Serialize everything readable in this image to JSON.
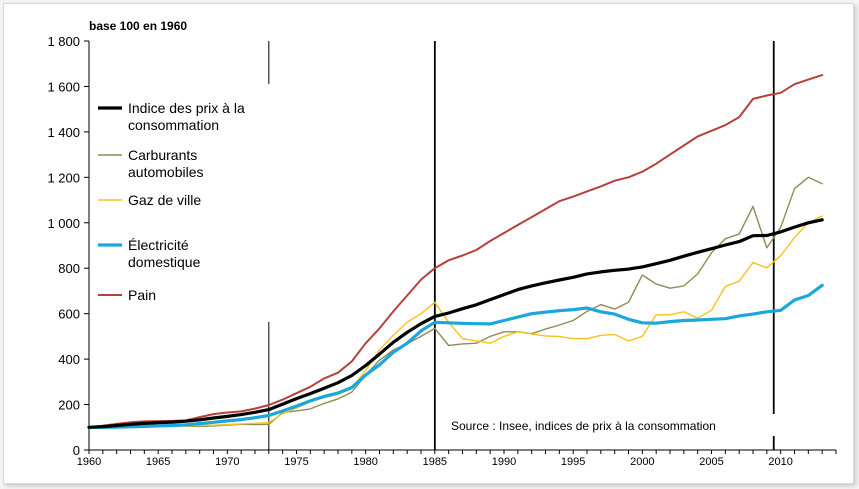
{
  "chart_data": {
    "type": "line",
    "subtitle": "base 100 en 1960",
    "source": "Source : Insee, indices de prix à la consommation",
    "xlim": [
      1960,
      2014
    ],
    "ylim": [
      0,
      1800
    ],
    "x_ticks": [
      1960,
      1965,
      1970,
      1975,
      1980,
      1985,
      1990,
      1995,
      2000,
      2005,
      2010
    ],
    "y_ticks": [
      {
        "value": 0,
        "label": "0"
      },
      {
        "value": 200,
        "label": "200"
      },
      {
        "value": 400,
        "label": "400"
      },
      {
        "value": 600,
        "label": "600"
      },
      {
        "value": 800,
        "label": "800"
      },
      {
        "value": 1000,
        "label": "1 000"
      },
      {
        "value": 1200,
        "label": "1 200"
      },
      {
        "value": 1400,
        "label": "1 400"
      },
      {
        "value": 1600,
        "label": "1 600"
      },
      {
        "value": 1800,
        "label": "1 800"
      }
    ],
    "vertical_markers": [
      1973,
      1985,
      2009.5
    ],
    "legend_position": "top-left",
    "x": [
      1960,
      1961,
      1962,
      1963,
      1964,
      1965,
      1966,
      1967,
      1968,
      1969,
      1970,
      1971,
      1972,
      1973,
      1974,
      1975,
      1976,
      1977,
      1978,
      1979,
      1980,
      1981,
      1982,
      1983,
      1984,
      1985,
      1986,
      1987,
      1988,
      1989,
      1990,
      1991,
      1992,
      1993,
      1994,
      1995,
      1996,
      1997,
      1998,
      1999,
      2000,
      2001,
      2002,
      2003,
      2004,
      2005,
      2006,
      2007,
      2008,
      2009,
      2010,
      2011,
      2012,
      2013
    ],
    "series": [
      {
        "name": "Indice des prix à la consommation",
        "color": "#000000",
        "width": 3.2,
        "values": [
          100,
          103,
          108,
          113,
          117,
          120,
          123,
          127,
          133,
          141,
          148,
          156,
          166,
          178,
          202,
          226,
          248,
          272,
          296,
          328,
          372,
          422,
          474,
          518,
          556,
          588,
          603,
          622,
          639,
          662,
          684,
          706,
          722,
          736,
          748,
          760,
          775,
          784,
          791,
          796,
          806,
          820,
          835,
          853,
          870,
          886,
          902,
          917,
          943,
          944,
          960,
          981,
          1000,
          1013
        ]
      },
      {
        "name": "Carburants automobiles",
        "color": "#948a54",
        "width": 1.4,
        "values": [
          100,
          102,
          104,
          104,
          104,
          104,
          105,
          105,
          104,
          106,
          110,
          113,
          112,
          113,
          165,
          172,
          181,
          205,
          225,
          255,
          330,
          395,
          440,
          468,
          500,
          535,
          460,
          467,
          470,
          500,
          520,
          520,
          512,
          532,
          550,
          570,
          610,
          640,
          620,
          650,
          770,
          730,
          712,
          722,
          775,
          868,
          930,
          950,
          1072,
          890,
          980,
          1150,
          1200,
          1172
        ]
      },
      {
        "name": "Gaz de ville",
        "color": "#f9c21b",
        "width": 1.4,
        "values": [
          100,
          102,
          104,
          104,
          105,
          105,
          106,
          107,
          108,
          109,
          112,
          115,
          118,
          120,
          160,
          185,
          212,
          230,
          245,
          270,
          350,
          440,
          505,
          562,
          600,
          650,
          562,
          490,
          480,
          470,
          500,
          520,
          510,
          502,
          500,
          490,
          490,
          505,
          508,
          480,
          500,
          595,
          595,
          608,
          580,
          615,
          720,
          743,
          825,
          802,
          855,
          935,
          1000,
          1030
        ]
      },
      {
        "name": "Électricité domestique",
        "color": "#1aa7dc",
        "width": 3.2,
        "values": [
          100,
          100,
          101,
          102,
          104,
          106,
          108,
          111,
          116,
          122,
          128,
          134,
          142,
          152,
          172,
          193,
          216,
          236,
          251,
          275,
          330,
          375,
          430,
          470,
          524,
          562,
          560,
          557,
          556,
          555,
          570,
          585,
          600,
          607,
          613,
          618,
          625,
          608,
          598,
          575,
          560,
          558,
          565,
          570,
          572,
          575,
          578,
          590,
          598,
          608,
          615,
          660,
          680,
          725
        ]
      },
      {
        "name": "Pain",
        "color": "#b5413d",
        "width": 2.0,
        "values": [
          100,
          107,
          115,
          122,
          126,
          127,
          128,
          130,
          145,
          158,
          165,
          170,
          182,
          198,
          222,
          250,
          278,
          315,
          340,
          390,
          470,
          535,
          610,
          680,
          750,
          800,
          835,
          856,
          880,
          920,
          955,
          990,
          1025,
          1060,
          1095,
          1115,
          1138,
          1160,
          1185,
          1200,
          1225,
          1260,
          1300,
          1340,
          1380,
          1405,
          1430,
          1465,
          1545,
          1560,
          1572,
          1610,
          1630,
          1650
        ]
      }
    ]
  }
}
